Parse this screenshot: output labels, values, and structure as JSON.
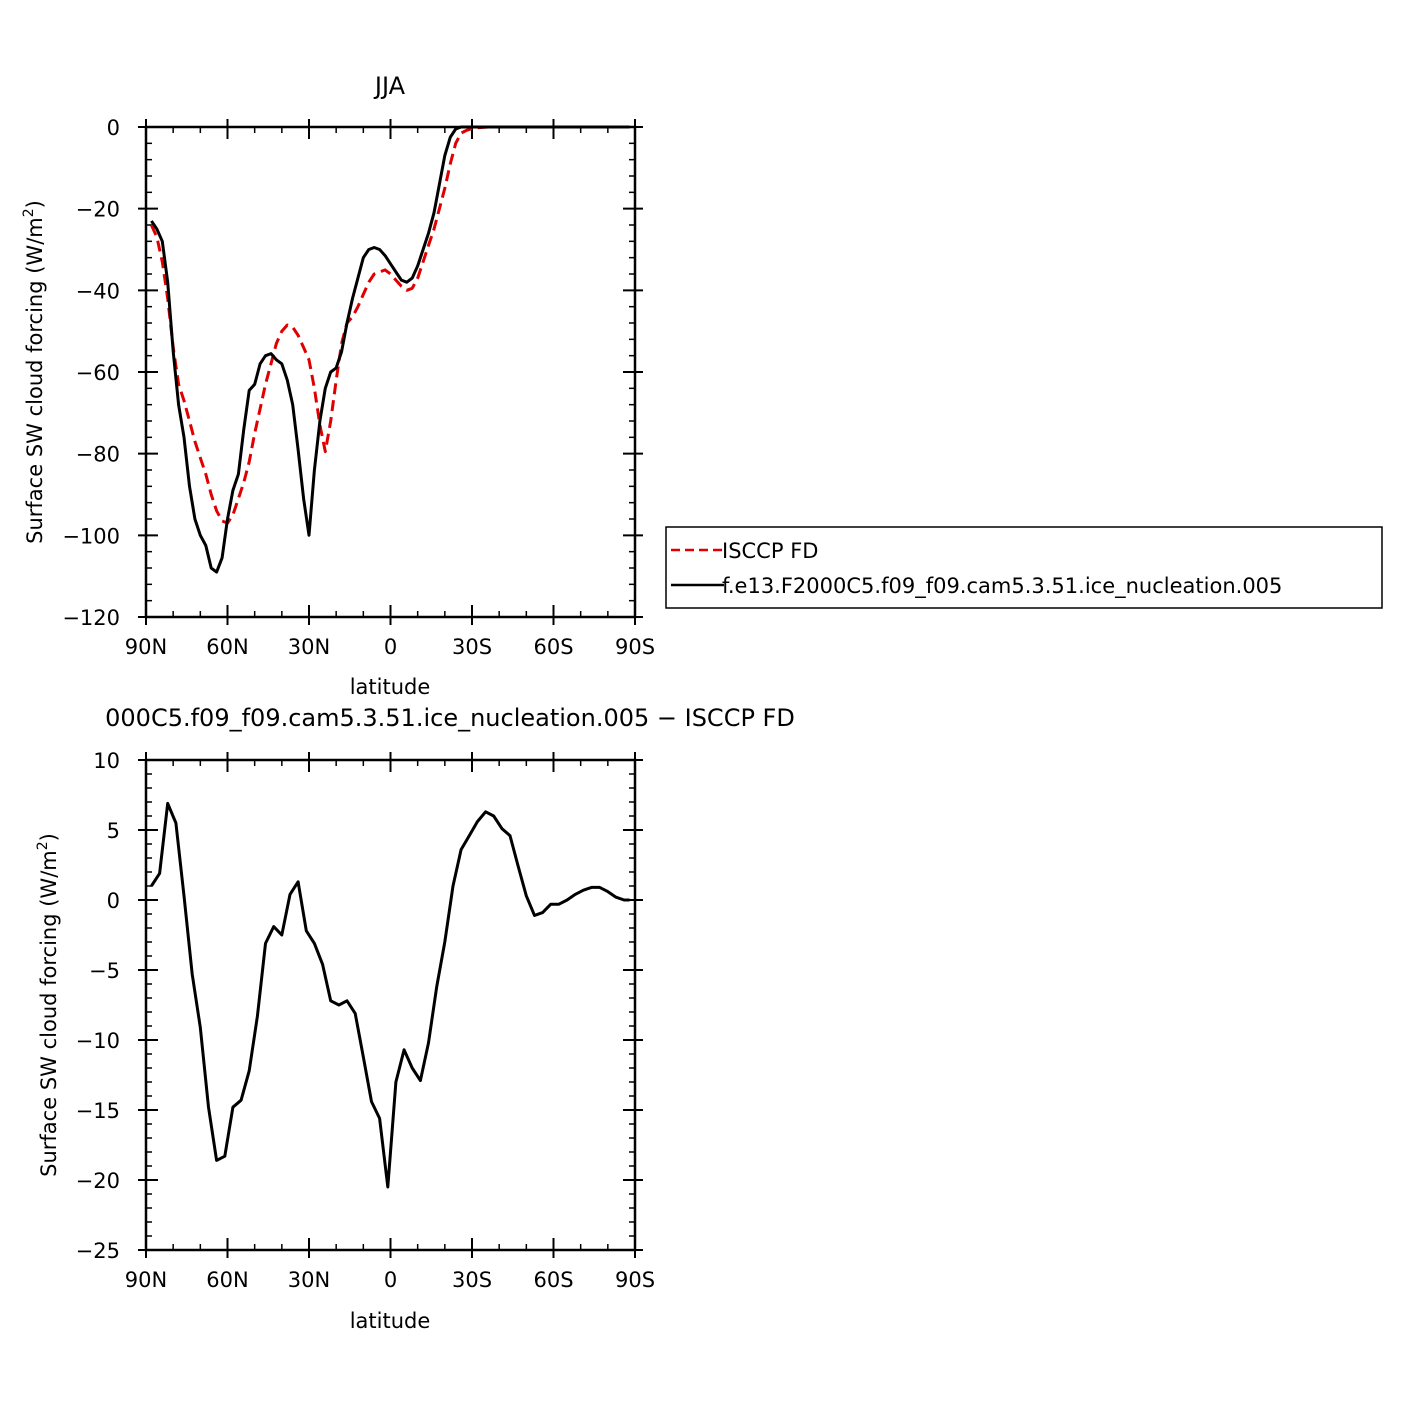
{
  "chart_data": [
    {
      "type": "line",
      "title": "JJA",
      "xlabel": "latitude",
      "ylabel": "Surface SW cloud forcing (W/m²)",
      "ylabel_main": "Surface SW cloud forcing (W/m",
      "ylabel_sup": "2",
      "ylabel_close": ")",
      "xlim": [
        -90,
        90
      ],
      "ylim": [
        -120,
        0
      ],
      "xticks": [
        -90,
        -60,
        -30,
        0,
        30,
        60,
        90
      ],
      "xtick_labels": [
        "90N",
        "60N",
        "30N",
        "0",
        "30S",
        "60S",
        "90S"
      ],
      "yticks": [
        -120,
        -100,
        -80,
        -60,
        -40,
        -20,
        0
      ],
      "ytick_labels": [
        "−120",
        "−100",
        "−80",
        "−60",
        "−40",
        "−20",
        "0"
      ],
      "legend": "right",
      "series": [
        {
          "name": "ISCCP FD",
          "color": "#e00000",
          "dash": "dashed",
          "x": [
            -88,
            -86,
            -84,
            -82,
            -80,
            -78,
            -76,
            -74,
            -72,
            -70,
            -68,
            -66,
            -64,
            -62,
            -60,
            -58,
            -56,
            -54,
            -52,
            -50,
            -48,
            -46,
            -44,
            -42,
            -40,
            -38,
            -36,
            -34,
            -32,
            -30,
            -28,
            -26,
            -24,
            -22,
            -20,
            -18,
            -16,
            -14,
            -12,
            -10,
            -8,
            -6,
            -4,
            -2,
            0,
            2,
            4,
            6,
            8,
            10,
            12,
            14,
            16,
            18,
            20,
            22,
            24,
            26,
            28,
            30,
            32,
            34,
            36,
            38,
            40,
            42,
            44,
            46,
            48,
            50,
            52,
            54,
            56,
            58,
            60,
            62,
            64,
            66,
            68,
            70,
            72,
            74,
            76,
            78,
            80,
            82,
            84,
            86,
            88
          ],
          "y": [
            -24,
            -27,
            -33,
            -42,
            -54,
            -63,
            -67,
            -72,
            -77,
            -81,
            -85,
            -90,
            -94,
            -96.5,
            -97,
            -95,
            -91,
            -87,
            -82,
            -75,
            -69,
            -63,
            -58,
            -53,
            -50,
            -48.5,
            -49,
            -51,
            -54,
            -57,
            -64,
            -73,
            -79.5,
            -72,
            -62,
            -53,
            -48,
            -46.5,
            -44,
            -41,
            -38,
            -36,
            -35.5,
            -35,
            -36,
            -37.5,
            -39,
            -40,
            -39.5,
            -37,
            -33,
            -29,
            -25,
            -20,
            -15,
            -9,
            -4,
            -1.5,
            -0.8,
            -0.4,
            -0.2,
            -0.1,
            0,
            0,
            0,
            0,
            0,
            0,
            0,
            0,
            0,
            0,
            0,
            0,
            0,
            0,
            0,
            0,
            0,
            0,
            0,
            0,
            0,
            0,
            0,
            0,
            0,
            0,
            0
          ]
        },
        {
          "name": "f.e13.F2000C5.f09_f09.cam5.3.51.ice_nucleation.005",
          "color": "#000000",
          "dash": "solid",
          "x": [
            -88,
            -86,
            -84,
            -82,
            -80,
            -78,
            -76,
            -74,
            -72,
            -70,
            -68,
            -66,
            -64,
            -62,
            -60,
            -58,
            -56,
            -54,
            -52,
            -50,
            -48,
            -46,
            -44,
            -42,
            -40,
            -38,
            -36,
            -34,
            -32,
            -30,
            -28,
            -26,
            -24,
            -22,
            -20,
            -18,
            -16,
            -14,
            -12,
            -10,
            -8,
            -6,
            -4,
            -2,
            0,
            2,
            4,
            6,
            8,
            10,
            12,
            14,
            16,
            18,
            20,
            22,
            24,
            26,
            28,
            30,
            32,
            34,
            36,
            38,
            40,
            42,
            44,
            46,
            48,
            50,
            52,
            54,
            56,
            58,
            60,
            62,
            64,
            66,
            68,
            70,
            72,
            74,
            76,
            78,
            80,
            82,
            84,
            86,
            88
          ],
          "y": [
            -23,
            -25,
            -28,
            -38,
            -55,
            -68,
            -76,
            -88,
            -96,
            -100,
            -102.5,
            -108,
            -109,
            -105.5,
            -96,
            -89,
            -85,
            -74,
            -64.5,
            -63,
            -58,
            -56,
            -55.5,
            -57,
            -58,
            -62,
            -68,
            -79,
            -91,
            -100,
            -84,
            -72,
            -64,
            -60,
            -59,
            -55,
            -48,
            -42,
            -37,
            -32,
            -30,
            -29.5,
            -30,
            -31.5,
            -33.5,
            -35.5,
            -37.5,
            -38,
            -37,
            -34,
            -30,
            -26,
            -21,
            -14,
            -7,
            -2.5,
            -0.5,
            0,
            0,
            0,
            0,
            0,
            0,
            0,
            0,
            0,
            0,
            0,
            0,
            0,
            0,
            0,
            0,
            0,
            0,
            0,
            0,
            0,
            0,
            0,
            0,
            0,
            0,
            0,
            0,
            0,
            0,
            0,
            0
          ]
        }
      ]
    },
    {
      "type": "line",
      "title": "000C5.f09_f09.cam5.3.51.ice_nucleation.005 − ISCCP FD",
      "xlabel": "latitude",
      "ylabel": "Surface SW cloud forcing (W/m²)",
      "ylabel_main": "Surface SW cloud forcing (W/m",
      "ylabel_sup": "2",
      "ylabel_close": ")",
      "xlim": [
        -90,
        90
      ],
      "ylim": [
        -25,
        10
      ],
      "xticks": [
        -90,
        -60,
        -30,
        0,
        30,
        60,
        90
      ],
      "xtick_labels": [
        "90N",
        "60N",
        "30N",
        "0",
        "30S",
        "60S",
        "90S"
      ],
      "yticks": [
        -25,
        -20,
        -15,
        -10,
        -5,
        0,
        5,
        10
      ],
      "ytick_labels": [
        "−25",
        "−20",
        "−15",
        "−10",
        "−5",
        "0",
        "5",
        "10"
      ],
      "legend": "none",
      "series": [
        {
          "color": "#000000",
          "dash": "solid",
          "x": [
            -88,
            -85,
            -82,
            -79,
            -76,
            -73,
            -70,
            -67,
            -64,
            -61,
            -58,
            -55,
            -52,
            -49,
            -46,
            -43,
            -40,
            -37,
            -34,
            -31,
            -28,
            -25,
            -22,
            -19,
            -16,
            -13,
            -10,
            -7,
            -4,
            -1,
            2,
            5,
            8,
            11,
            14,
            17,
            20,
            23,
            26,
            29,
            32,
            35,
            38,
            41,
            44,
            47,
            50,
            53,
            56,
            59,
            62,
            65,
            68,
            71,
            74,
            77,
            80,
            83,
            86,
            88
          ],
          "y": [
            1,
            1.9,
            6.9,
            5.5,
            0.3,
            -5.3,
            -9.1,
            -14.8,
            -18.6,
            -18.3,
            -14.8,
            -14.3,
            -12.2,
            -8.3,
            -3.1,
            -1.9,
            -2.5,
            0.4,
            1.3,
            -2.2,
            -3.1,
            -4.6,
            -7.2,
            -7.5,
            -7.2,
            -8.1,
            -11.2,
            -14.4,
            -15.6,
            -20.5,
            -13,
            -10.7,
            -12,
            -12.9,
            -10.2,
            -6.2,
            -3,
            1,
            3.6,
            4.6,
            5.6,
            6.3,
            6,
            5.1,
            4.6,
            2.4,
            0.3,
            -1.1,
            -0.9,
            -0.3,
            -0.3,
            0,
            0.4,
            0.7,
            0.9,
            0.9,
            0.6,
            0.2,
            0,
            0
          ]
        }
      ]
    }
  ]
}
